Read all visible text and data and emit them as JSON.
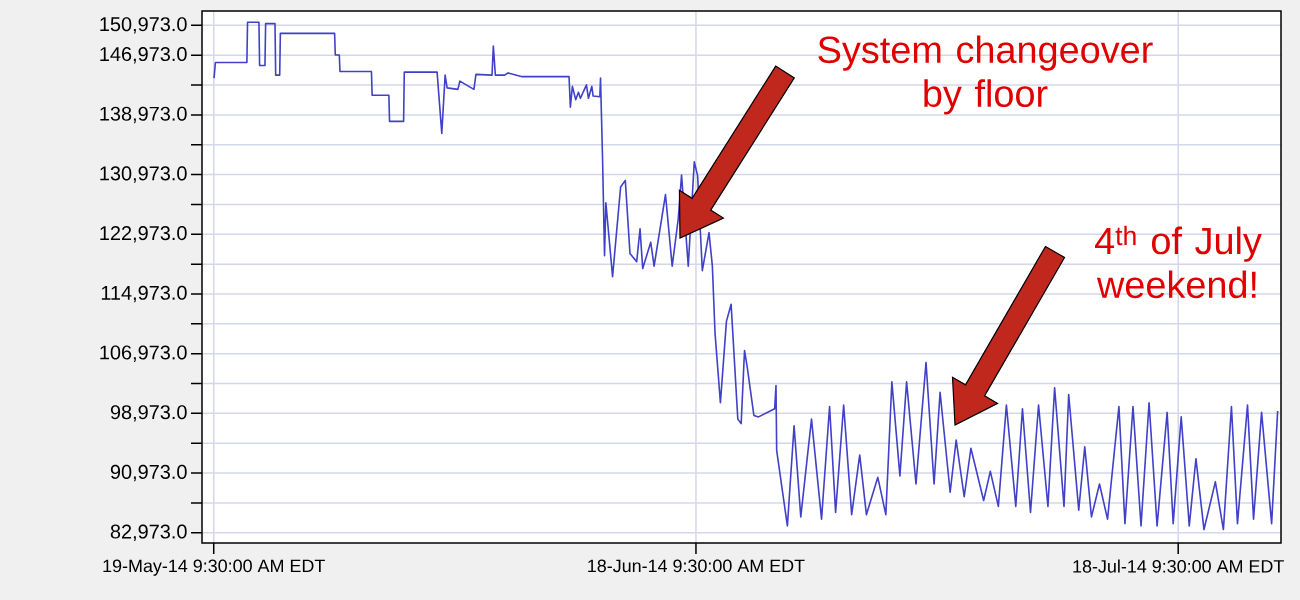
{
  "chart_data": {
    "type": "line",
    "color": "#4040c8",
    "grid": true,
    "xlim": [
      "2014-05-18T16:00",
      "2014-07-24T19:00"
    ],
    "xticks": [
      {
        "value": "2014-05-19T09:30",
        "label": "19-May-14 9:30:00 AM EDT"
      },
      {
        "value": "2014-06-18T09:30",
        "label": "18-Jun-14 9:30:00 AM EDT"
      },
      {
        "value": "2014-07-18T09:30",
        "label": "18-Jul-14 9:30:00 AM EDT"
      }
    ],
    "ylim": [
      81600,
      152900
    ],
    "yticks": [
      {
        "value": 82973,
        "label": "82,973.0"
      },
      {
        "value": 86973,
        "label": null
      },
      {
        "value": 90973,
        "label": "90,973.0"
      },
      {
        "value": 94973,
        "label": null
      },
      {
        "value": 98973,
        "label": "98,973.0"
      },
      {
        "value": 102973,
        "label": null
      },
      {
        "value": 106973,
        "label": "106,973.0"
      },
      {
        "value": 110973,
        "label": null
      },
      {
        "value": 114973,
        "label": "114,973.0"
      },
      {
        "value": 118973,
        "label": null
      },
      {
        "value": 122973,
        "label": "122,973.0"
      },
      {
        "value": 126973,
        "label": null
      },
      {
        "value": 130973,
        "label": "130,973.0"
      },
      {
        "value": 134973,
        "label": null
      },
      {
        "value": 138973,
        "label": "138,973.0"
      },
      {
        "value": 142973,
        "label": null
      },
      {
        "value": 146973,
        "label": "146,973.0"
      },
      {
        "value": 150973,
        "label": "150,973.0"
      }
    ],
    "x": [
      "2014-05-19T10:00",
      "2014-05-19T12:00",
      "2014-05-21T11:00",
      "2014-05-21T12:00",
      "2014-05-22T05:00",
      "2014-05-22T06:00",
      "2014-05-22T14:00",
      "2014-05-22T15:00",
      "2014-05-23T05:00",
      "2014-05-23T06:00",
      "2014-05-23T12:00",
      "2014-05-23T13:00",
      "2014-05-26T22:00",
      "2014-05-26T23:00",
      "2014-05-27T05:00",
      "2014-05-27T06:00",
      "2014-05-29T05:00",
      "2014-05-29T06:00",
      "2014-05-30T07:00",
      "2014-05-30T08:00",
      "2014-05-31T05:00",
      "2014-05-31T06:00",
      "2014-06-02T07:00",
      "2014-06-02T14:00",
      "2014-06-02T19:00",
      "2014-06-02T22:00",
      "2014-06-03T14:00",
      "2014-06-03T17:00",
      "2014-06-04T14:00",
      "2014-06-04T17:00",
      "2014-06-05T17:00",
      "2014-06-05T19:00",
      "2014-06-05T22:00",
      "2014-06-06T12:00",
      "2014-06-06T17:00",
      "2014-06-07T14:00",
      "2014-06-10T12:00",
      "2014-06-10T14:00",
      "2014-06-10T17:00",
      "2014-06-10T22:00",
      "2014-06-11T02:00",
      "2014-06-11T05:00",
      "2014-06-11T14:00",
      "2014-06-11T17:00",
      "2014-06-11T22:00",
      "2014-06-12T00:00",
      "2014-06-12T10:00",
      "2014-06-12T11:00",
      "2014-06-12T14:00",
      "2014-06-12T17:00",
      "2014-06-12T19:00",
      "2014-06-13T05:00",
      "2014-06-13T17:00",
      "2014-06-14T00:00",
      "2014-06-14T07:00",
      "2014-06-14T17:00",
      "2014-06-14T22:00",
      "2014-06-15T02:00",
      "2014-06-15T14:00",
      "2014-06-15T19:00",
      "2014-06-16T12:00",
      "2014-06-16T22:00",
      "2014-06-17T07:00",
      "2014-06-17T12:00",
      "2014-06-17T22:00",
      "2014-06-18T07:00",
      "2014-06-18T12:00",
      "2014-06-18T19:00",
      "2014-06-19T05:00",
      "2014-06-19T10:00",
      "2014-06-19T14:00",
      "2014-06-19T22:00",
      "2014-06-20T07:00",
      "2014-06-20T14:00",
      "2014-06-21T00:00",
      "2014-06-21T05:00",
      "2014-06-21T10:00",
      "2014-06-21T14:00",
      "2014-06-22T00:00",
      "2014-06-22T07:00",
      "2014-06-23T07:00",
      "2014-06-23T09:00",
      "2014-06-23T10:00",
      "2014-06-24T02:00",
      "2014-06-24T12:00",
      "2014-06-24T22:00",
      "2014-06-25T14:00",
      "2014-06-26T05:00",
      "2014-06-26T17:00",
      "2014-06-27T02:00",
      "2014-06-27T14:00",
      "2014-06-28T02:00",
      "2014-06-28T14:00",
      "2014-06-29T00:00",
      "2014-06-29T17:00",
      "2014-06-30T05:00",
      "2014-06-30T14:00",
      "2014-07-01T02:00",
      "2014-07-01T12:00",
      "2014-07-02T02:00",
      "2014-07-02T17:00",
      "2014-07-03T05:00",
      "2014-07-03T14:00",
      "2014-07-04T05:00",
      "2014-07-04T14:00",
      "2014-07-05T02:00",
      "2014-07-05T12:00",
      "2014-07-06T07:00",
      "2014-07-06T17:00",
      "2014-07-07T05:00",
      "2014-07-07T17:00",
      "2014-07-08T07:00",
      "2014-07-08T17:00",
      "2014-07-09T05:00",
      "2014-07-09T17:00",
      "2014-07-10T07:00",
      "2014-07-10T17:00",
      "2014-07-11T07:00",
      "2014-07-11T14:00",
      "2014-07-12T05:00",
      "2014-07-12T14:00",
      "2014-07-13T00:00",
      "2014-07-13T12:00",
      "2014-07-14T00:00",
      "2014-07-14T17:00",
      "2014-07-15T02:00",
      "2014-07-15T14:00",
      "2014-07-16T02:00",
      "2014-07-16T14:00",
      "2014-07-17T02:00",
      "2014-07-17T17:00",
      "2014-07-18T02:00",
      "2014-07-18T14:00",
      "2014-07-19T02:00",
      "2014-07-19T12:00",
      "2014-07-20T00:00",
      "2014-07-20T17:00",
      "2014-07-21T05:00",
      "2014-07-21T17:00",
      "2014-07-22T02:00",
      "2014-07-22T17:00",
      "2014-07-23T02:00",
      "2014-07-23T14:00",
      "2014-07-24T05:00",
      "2014-07-24T14:00"
    ],
    "values": [
      143900,
      146000,
      146000,
      151400,
      151400,
      145600,
      145600,
      151200,
      151200,
      144300,
      144300,
      149900,
      149900,
      147000,
      147000,
      144800,
      144800,
      141600,
      141600,
      138100,
      138100,
      144700,
      144700,
      136500,
      144300,
      142600,
      142400,
      143500,
      142400,
      144400,
      144300,
      148200,
      144300,
      144300,
      144600,
      144100,
      144100,
      140000,
      142800,
      141000,
      142000,
      141200,
      143000,
      141200,
      142800,
      141500,
      141400,
      143900,
      133300,
      120100,
      127200,
      117300,
      129300,
      130200,
      120400,
      119300,
      123700,
      118400,
      121900,
      118700,
      128300,
      118700,
      125000,
      130900,
      118700,
      132700,
      130800,
      118100,
      123200,
      118700,
      109700,
      100400,
      111300,
      113600,
      98200,
      97600,
      107400,
      105200,
      98700,
      98500,
      99600,
      102700,
      94000,
      83900,
      97300,
      85100,
      98200,
      84800,
      99900,
      85700,
      100100,
      85400,
      93400,
      85400,
      90400,
      85400,
      103200,
      90600,
      103200,
      89500,
      105800,
      89500,
      101800,
      88400,
      95400,
      87800,
      94300,
      87300,
      91200,
      86500,
      100100,
      86500,
      99600,
      85700,
      100100,
      86500,
      102400,
      86500,
      101500,
      86000,
      94500,
      85100,
      89500,
      84800,
      99900,
      84200,
      99900,
      83900,
      100400,
      83900,
      99100,
      84200,
      98500,
      83900,
      92900,
      83400,
      89800,
      83400,
      99900,
      84200,
      100100,
      84800,
      99100,
      84200,
      99300
    ],
    "annotations": [
      "System changeover by floor",
      "4$^{th}$ of July weekend!"
    ]
  }
}
